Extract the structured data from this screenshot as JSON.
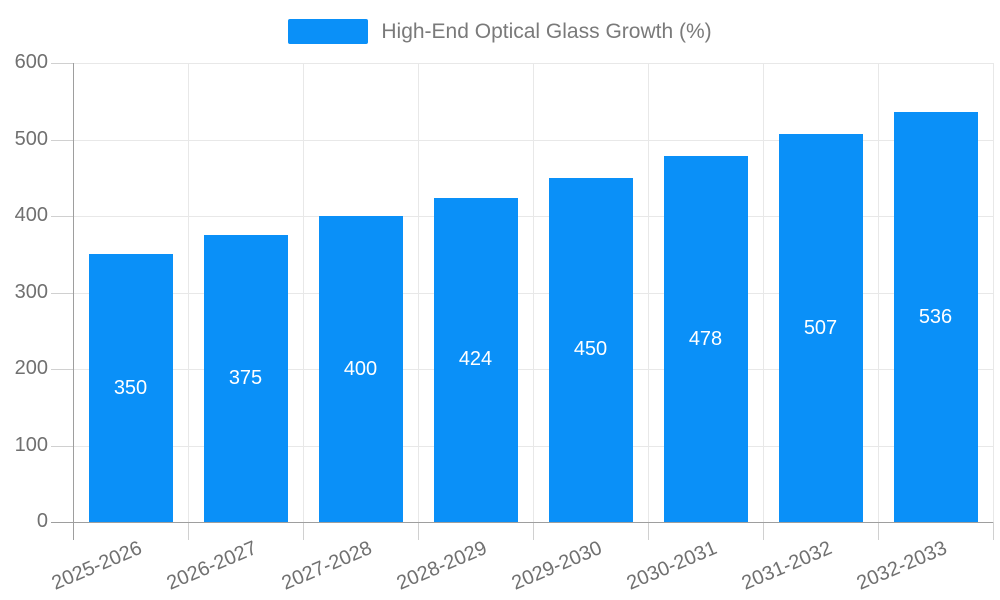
{
  "chart_data": {
    "type": "bar",
    "title": "High-End Optical Glass Growth (%)",
    "categories": [
      "2025-2026",
      "2026-2027",
      "2027-2028",
      "2028-2029",
      "2029-2030",
      "2030-2031",
      "2031-2032",
      "2032-2033"
    ],
    "series": [
      {
        "name": "High-End Optical Glass Growth (%)",
        "values": [
          350,
          375,
          400,
          424,
          450,
          478,
          507,
          536
        ]
      }
    ],
    "xlabel": "",
    "ylabel": "",
    "ylim": [
      0,
      600
    ],
    "yticks": [
      0,
      100,
      200,
      300,
      400,
      500,
      600
    ],
    "grid": true,
    "legend_position": "top-center",
    "value_labels_inside_bars": true,
    "x_label_rotation_deg": -23
  },
  "colors": {
    "bar": "#0a90f8",
    "grid": "#e8e8e8",
    "tick": "#d0d0d0",
    "axis": "#9e9e9e",
    "tick_text": "#707070",
    "legend_text": "#7a7a7a",
    "value_label": "#ffffff",
    "background": "#ffffff"
  }
}
